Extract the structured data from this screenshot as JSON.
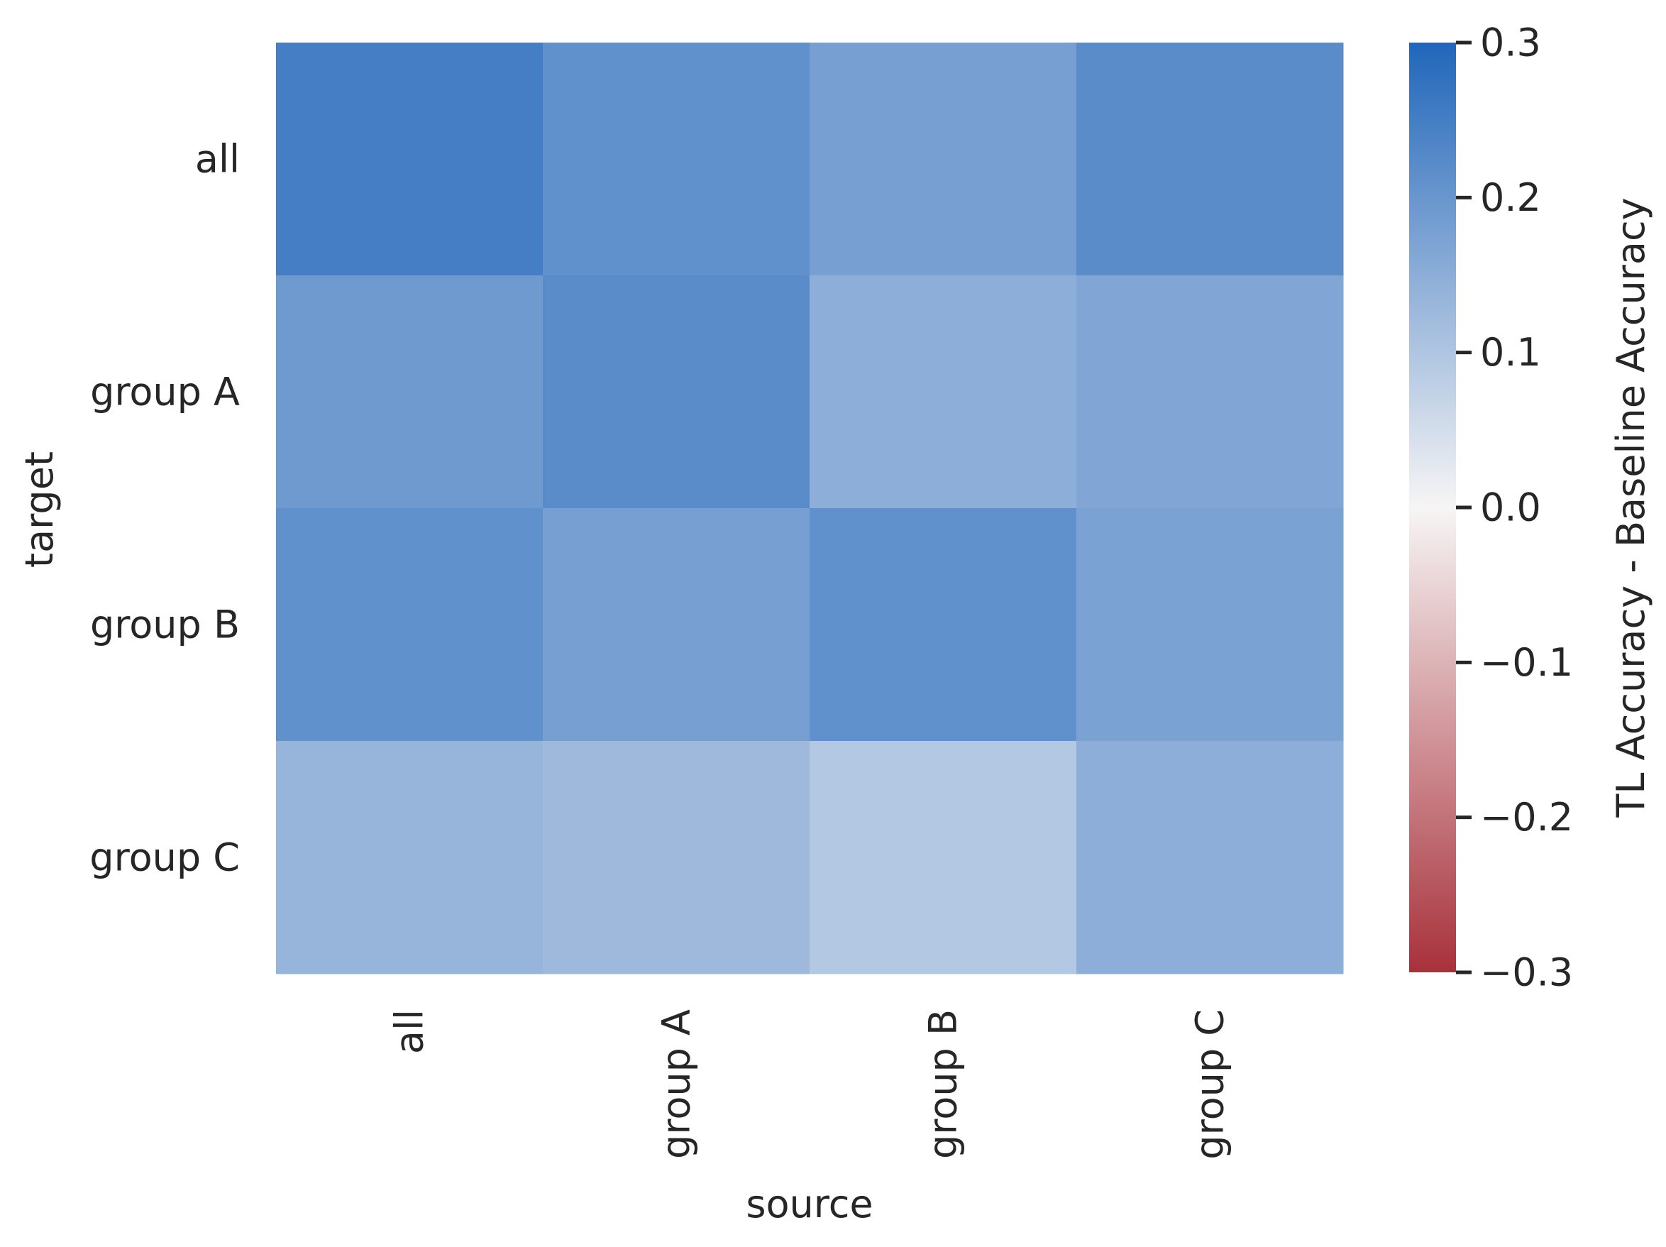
{
  "chart_data": {
    "type": "heatmap",
    "title": "",
    "xlabel": "source",
    "ylabel": "target",
    "x_categories": [
      "all",
      "group A",
      "group B",
      "group C"
    ],
    "y_categories": [
      "all",
      "group A",
      "group B",
      "group C"
    ],
    "values": [
      [
        0.25,
        0.21,
        0.18,
        0.22
      ],
      [
        0.19,
        0.22,
        0.15,
        0.165
      ],
      [
        0.21,
        0.18,
        0.21,
        0.175
      ],
      [
        0.135,
        0.125,
        0.095,
        0.15
      ]
    ],
    "colorbar": {
      "label": "TL Accuracy - Baseline Accuracy",
      "range": [
        -0.3,
        0.3
      ],
      "ticks": [
        0.3,
        0.2,
        0.1,
        0.0,
        -0.1,
        -0.2,
        -0.3
      ],
      "tick_labels": [
        "0.3",
        "0.2",
        "0.1",
        "0.0",
        "−0.1",
        "−0.2",
        "−0.3"
      ],
      "colormap": "diverging red-white-blue",
      "color_low": "#a8313b",
      "color_mid": "#f7f5f5",
      "color_high": "#2166ba"
    },
    "grid": false,
    "legend": "colorbar-right"
  }
}
